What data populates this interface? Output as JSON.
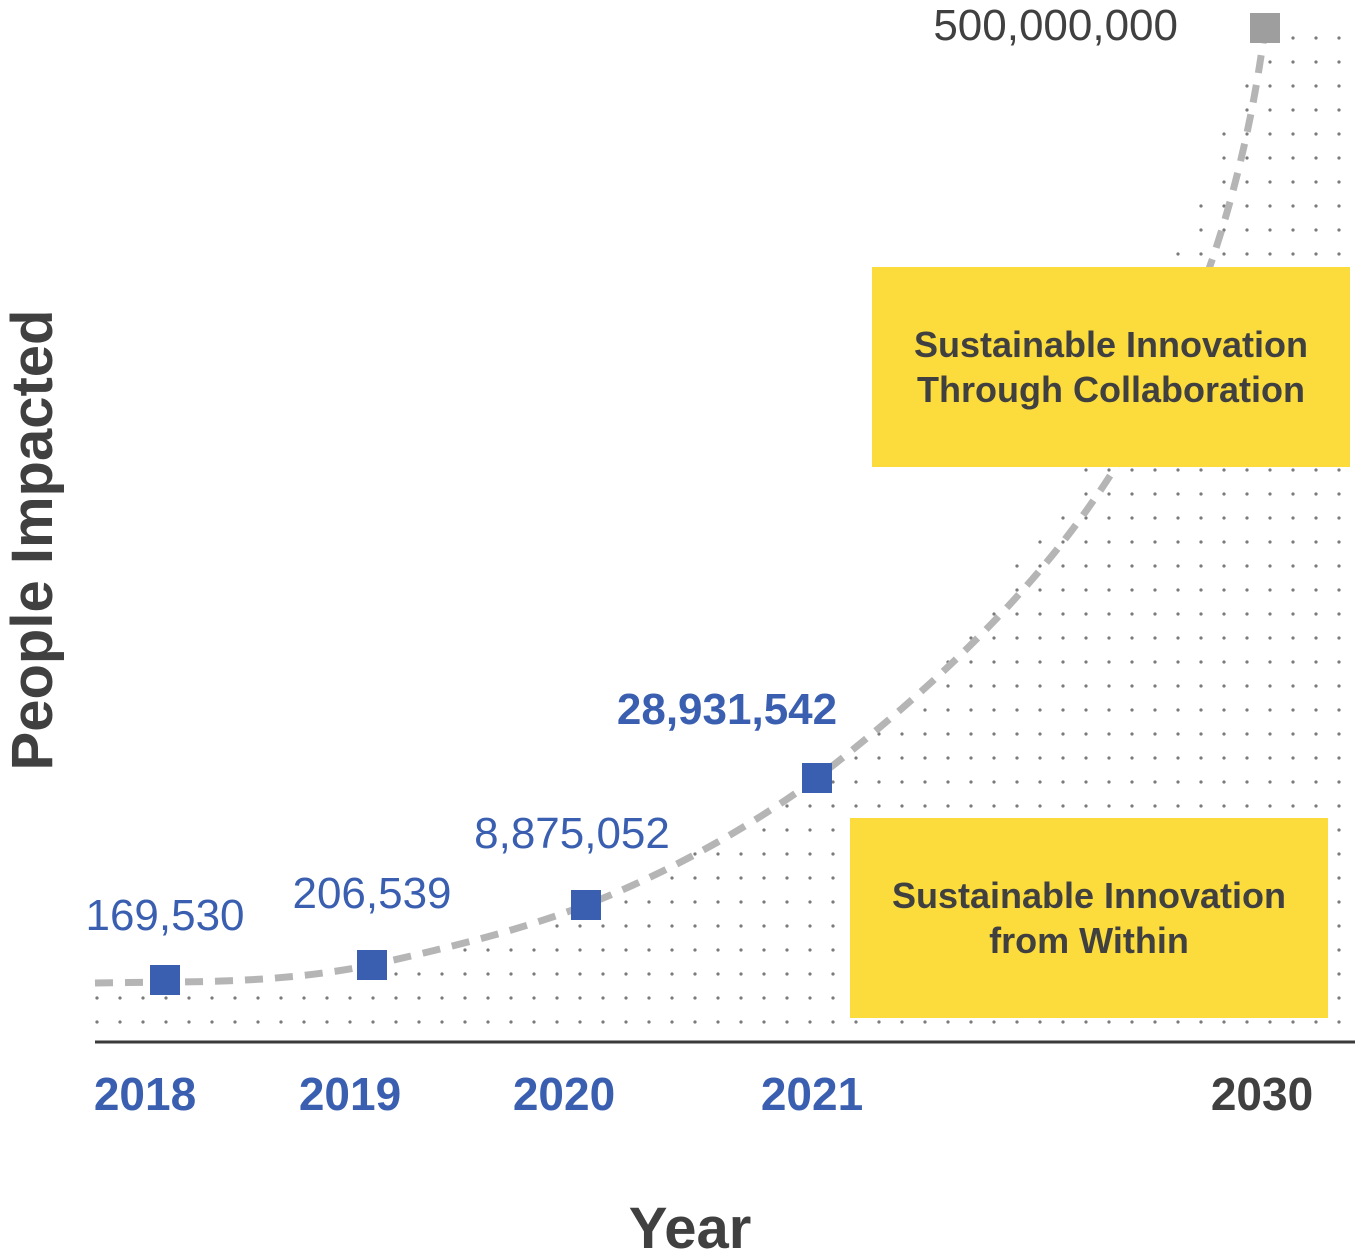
{
  "chart_data": {
    "type": "scatter",
    "xlabel": "Year",
    "ylabel": "People Impacted",
    "grid": false,
    "trend_line": "dashed exponential curve",
    "points": [
      {
        "x": "2018",
        "y": 169530,
        "label": "169,530",
        "status": "actual"
      },
      {
        "x": "2019",
        "y": 206539,
        "label": "206,539",
        "status": "actual"
      },
      {
        "x": "2020",
        "y": 8875052,
        "label": "8,875,052",
        "status": "actual"
      },
      {
        "x": "2021",
        "y": 28931542,
        "label": "28,931,542",
        "status": "actual",
        "emphasis": "bold"
      },
      {
        "x": "2030",
        "y": 500000000,
        "label": "500,000,000",
        "status": "target"
      }
    ],
    "annotations": [
      {
        "id": "within",
        "text": "Sustainable Innovation from Within"
      },
      {
        "id": "collab",
        "text": "Sustainable Innovation Through Collaboration"
      }
    ]
  },
  "colors": {
    "actual": "#3a5fb0",
    "target": "#9e9e9e",
    "trend": "#b5b5b5",
    "box": "#fbdc3c",
    "text_dark": "#404040",
    "axis": "#3a3a3a",
    "dots": "#7a7a7a"
  }
}
